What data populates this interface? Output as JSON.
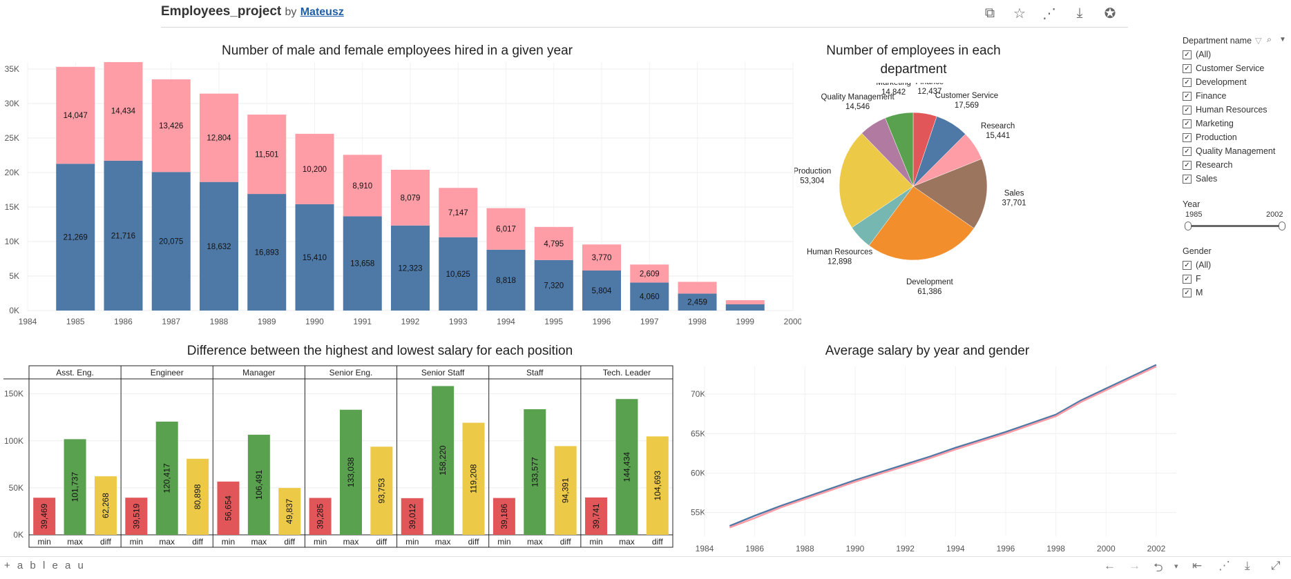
{
  "header": {
    "project_name": "Employees_project",
    "by_label": "by",
    "author": "Mateusz",
    "icons": [
      "copy-icon",
      "star-icon",
      "share-icon",
      "download-icon",
      "badge-icon"
    ]
  },
  "filters": {
    "department": {
      "label": "Department name",
      "items": [
        "(All)",
        "Customer Service",
        "Development",
        "Finance",
        "Human Resources",
        "Marketing",
        "Production",
        "Quality Management",
        "Research",
        "Sales"
      ]
    },
    "year": {
      "label": "Year",
      "min_label": "1985",
      "max_label": "2002"
    },
    "gender": {
      "label": "Gender",
      "items": [
        "(All)",
        "F",
        "M"
      ]
    }
  },
  "footer": {
    "brand": "+ a b l e a u"
  },
  "colors": {
    "male": "#4e79a7",
    "female": "#ff9da7",
    "min": "#e15759",
    "max": "#59a14f",
    "diff": "#edc948"
  },
  "chart_data": [
    {
      "id": "hires",
      "type": "bar",
      "title": "Number of male and female employees hired in a given year",
      "x": [
        1985,
        1986,
        1987,
        1988,
        1989,
        1990,
        1991,
        1992,
        1993,
        1994,
        1995,
        1996,
        1997,
        1998,
        1999
      ],
      "x_ticks": [
        "1984",
        "1985",
        "1986",
        "1987",
        "1988",
        "1989",
        "1990",
        "1991",
        "1992",
        "1993",
        "1994",
        "1995",
        "1996",
        "1997",
        "1998",
        "1999",
        "2000"
      ],
      "y_ticks": [
        "0K",
        "5K",
        "10K",
        "15K",
        "20K",
        "25K",
        "30K",
        "35K"
      ],
      "ylim": [
        0,
        36000
      ],
      "stacked": true,
      "series": [
        {
          "values": [
            21269,
            21716,
            20075,
            18632,
            16893,
            15410,
            13658,
            12323,
            10625,
            8818,
            7320,
            5804,
            4060,
            2459,
            900
          ],
          "labels": [
            "21,269",
            "21,716",
            "20,075",
            "18,632",
            "16,893",
            "15,410",
            "13,658",
            "12,323",
            "10,625",
            "8,818",
            "7,320",
            "5,804",
            "4,060",
            "2,459",
            ""
          ]
        },
        {
          "values": [
            14047,
            14434,
            13426,
            12804,
            11501,
            10200,
            8910,
            8079,
            7147,
            6017,
            4795,
            3770,
            2609,
            1700,
            600
          ],
          "labels": [
            "14,047",
            "14,434",
            "13,426",
            "12,804",
            "11,501",
            "10,200",
            "8,910",
            "8,079",
            "7,147",
            "6,017",
            "4,795",
            "3,770",
            "2,609",
            "",
            ""
          ]
        }
      ]
    },
    {
      "id": "departments",
      "type": "pie",
      "title": "Number of employees in each department",
      "slices": [
        {
          "name": "Finance",
          "value": 12437,
          "label": "12,437"
        },
        {
          "name": "Customer Service",
          "value": 17569,
          "label": "17,569"
        },
        {
          "name": "Research",
          "value": 15441,
          "label": "15,441"
        },
        {
          "name": "Sales",
          "value": 37701,
          "label": "37,701"
        },
        {
          "name": "Development",
          "value": 61386,
          "label": "61,386"
        },
        {
          "name": "Human Resources",
          "value": 12898,
          "label": "12,898"
        },
        {
          "name": "Production",
          "value": 53304,
          "label": "53,304"
        },
        {
          "name": "Quality Management",
          "value": 14546,
          "label": "14,546"
        },
        {
          "name": "Marketing",
          "value": 14842,
          "label": "14,842"
        }
      ],
      "colors": [
        "#e15759",
        "#4e79a7",
        "#ff9da7",
        "#9c755f",
        "#f28e2b",
        "#76b7b2",
        "#edc948",
        "#b07aa1",
        "#59a14f"
      ]
    },
    {
      "id": "salary_diff",
      "type": "bar",
      "title": "Difference between the highest and lowest salary for each position",
      "panels": [
        "Asst. Eng.",
        "Engineer",
        "Manager",
        "Senior Eng.",
        "Senior Staff",
        "Staff",
        "Tech. Leader"
      ],
      "categories": [
        "min",
        "max",
        "diff"
      ],
      "values": [
        [
          39469,
          101737,
          62268
        ],
        [
          39519,
          120417,
          80898
        ],
        [
          56654,
          106491,
          49837
        ],
        [
          39285,
          133038,
          93753
        ],
        [
          39012,
          158220,
          119208
        ],
        [
          39186,
          133577,
          94391
        ],
        [
          39741,
          144434,
          104693
        ]
      ],
      "labels": [
        [
          "39,469",
          "101,737",
          "62,268"
        ],
        [
          "39,519",
          "120,417",
          "80,898"
        ],
        [
          "56,654",
          "106,491",
          "49,837"
        ],
        [
          "39,285",
          "133,038",
          "93,753"
        ],
        [
          "39,012",
          "158,220",
          "119,208"
        ],
        [
          "39,186",
          "133,577",
          "94,391"
        ],
        [
          "39,741",
          "144,434",
          "104,693"
        ]
      ],
      "y_ticks": [
        "0K",
        "50K",
        "100K",
        "150K"
      ],
      "ylim": [
        0,
        160000
      ]
    },
    {
      "id": "avg_salary",
      "type": "line",
      "title": "Average salary by year and gender",
      "x": [
        1985,
        1986,
        1987,
        1988,
        1989,
        1990,
        1991,
        1992,
        1993,
        1994,
        1995,
        1996,
        1997,
        1998,
        1999,
        2000,
        2001,
        2002
      ],
      "x_ticks": [
        "1984",
        "1986",
        "1988",
        "1990",
        "1992",
        "1994",
        "1996",
        "1998",
        "2000",
        "2002"
      ],
      "y_ticks": [
        "55K",
        "60K",
        "65K",
        "70K"
      ],
      "xlim": [
        1984,
        2002.8
      ],
      "ylim": [
        52000,
        73500
      ],
      "series": [
        {
          "values": [
            53300,
            54600,
            55800,
            56900,
            58000,
            59100,
            60100,
            61100,
            62100,
            63200,
            64200,
            65200,
            66300,
            67400,
            69200,
            70700,
            72200,
            73700
          ]
        },
        {
          "values": [
            53100,
            54300,
            55600,
            56700,
            57800,
            58900,
            59900,
            60900,
            61900,
            63000,
            64000,
            65000,
            66100,
            67200,
            69000,
            70500,
            72000,
            73500
          ]
        }
      ]
    }
  ]
}
